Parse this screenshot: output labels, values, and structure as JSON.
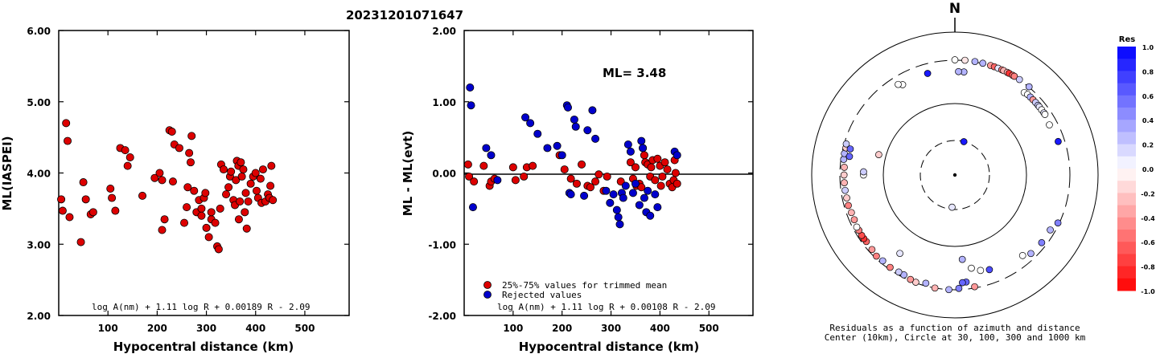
{
  "title": "20231201071647",
  "chart_data": [
    {
      "type": "scatter",
      "ylabel": "ML(IASPEI)",
      "xlabel": "Hypocentral distance (km)",
      "xlim": [
        0,
        590
      ],
      "ylim": [
        2.0,
        6.0
      ],
      "x_ticks": [
        "100",
        "200",
        "300",
        "400",
        "500"
      ],
      "y_ticks": [
        "2.00",
        "3.00",
        "4.00",
        "5.00",
        "6.00"
      ],
      "formula": "log A(nm) + 1.11 log R + 0.00189 R - 2.09",
      "series": [
        {
          "color": "#dd0000",
          "x": [
            5,
            8,
            15,
            18,
            22,
            45,
            50,
            55,
            65,
            70,
            105,
            108,
            115,
            125,
            135,
            145,
            140,
            170,
            195,
            205,
            210,
            215,
            210,
            225,
            230,
            232,
            235,
            245,
            255,
            260,
            262,
            265,
            268,
            270,
            275,
            280,
            285,
            290,
            290,
            295,
            298,
            300,
            305,
            310,
            310,
            318,
            322,
            325,
            328,
            330,
            335,
            340,
            345,
            348,
            350,
            355,
            358,
            360,
            362,
            365,
            366,
            368,
            370,
            372,
            375,
            378,
            380,
            382,
            385,
            390,
            395,
            400,
            402,
            405,
            410,
            412,
            415,
            420,
            425,
            428,
            430,
            432,
            435
          ],
          "y": [
            3.63,
            3.47,
            4.7,
            4.45,
            3.38,
            3.03,
            3.87,
            3.63,
            3.42,
            3.45,
            3.78,
            3.65,
            3.47,
            4.35,
            4.32,
            4.22,
            4.1,
            3.68,
            3.93,
            4.0,
            3.9,
            3.35,
            3.2,
            4.6,
            4.58,
            3.88,
            4.4,
            4.35,
            3.3,
            3.52,
            3.8,
            4.28,
            4.15,
            4.52,
            3.75,
            3.45,
            3.62,
            3.5,
            3.4,
            3.65,
            3.72,
            3.23,
            3.1,
            3.35,
            3.45,
            3.3,
            2.97,
            2.93,
            3.5,
            4.12,
            4.05,
            3.7,
            3.8,
            3.95,
            4.02,
            3.62,
            3.55,
            3.9,
            4.17,
            4.1,
            3.35,
            3.6,
            4.15,
            3.95,
            4.05,
            3.45,
            3.72,
            3.22,
            3.6,
            3.85,
            3.95,
            4.0,
            3.75,
            3.65,
            3.92,
            3.58,
            4.05,
            3.6,
            3.7,
            3.65,
            3.82,
            4.1,
            3.62
          ]
        }
      ]
    },
    {
      "type": "scatter",
      "ylabel": "ML - ML(evt)",
      "xlabel": "Hypocentral distance (km)",
      "xlim": [
        0,
        590
      ],
      "ylim": [
        -2.0,
        2.0
      ],
      "x_ticks": [
        "100",
        "200",
        "300",
        "400",
        "500"
      ],
      "y_ticks": [
        "-2.00",
        "-1.00",
        "0.00",
        "1.00",
        "2.00"
      ],
      "annotation": "ML= 3.48",
      "formula": "log A(nm) + 1.11 log R + 0.00108 R - 2.09",
      "series": [
        {
          "name": "25%-75% values for trimmed mean",
          "color": "#dd0000",
          "x": [
            8,
            10,
            20,
            40,
            52,
            55,
            62,
            100,
            105,
            122,
            128,
            140,
            195,
            205,
            218,
            230,
            240,
            252,
            258,
            268,
            275,
            285,
            292,
            320,
            340,
            345,
            350,
            352,
            358,
            362,
            365,
            368,
            370,
            375,
            380,
            382,
            385,
            390,
            395,
            400,
            402,
            405,
            410,
            415,
            420,
            425,
            428,
            430,
            432,
            435
          ],
          "y": [
            0.12,
            -0.05,
            -0.12,
            0.1,
            -0.18,
            -0.12,
            -0.08,
            0.08,
            -0.1,
            -0.05,
            0.08,
            0.1,
            0.25,
            0.05,
            -0.08,
            -0.15,
            0.12,
            -0.18,
            -0.2,
            -0.12,
            -0.02,
            -0.25,
            -0.05,
            -0.12,
            0.15,
            -0.08,
            0.08,
            -0.18,
            -0.15,
            -0.2,
            0.35,
            0.25,
            0.15,
            0.12,
            -0.05,
            0.08,
            0.18,
            -0.1,
            0.2,
            0.1,
            -0.18,
            -0.05,
            0.15,
            0.05,
            -0.15,
            -0.2,
            -0.1,
            0.18,
            0.0,
            -0.15
          ]
        },
        {
          "name": "Rejected values",
          "color": "#0000cc",
          "x": [
            12,
            14,
            18,
            45,
            55,
            68,
            125,
            135,
            150,
            170,
            190,
            200,
            210,
            212,
            215,
            218,
            225,
            228,
            245,
            252,
            262,
            268,
            290,
            298,
            305,
            312,
            315,
            318,
            322,
            325,
            330,
            335,
            340,
            345,
            350,
            358,
            362,
            365,
            368,
            372,
            375,
            380,
            390,
            395,
            430,
            435
          ],
          "y": [
            1.2,
            0.95,
            -0.48,
            0.35,
            0.25,
            -0.1,
            0.78,
            0.7,
            0.55,
            0.35,
            0.38,
            0.25,
            0.95,
            0.92,
            -0.28,
            -0.3,
            0.75,
            0.65,
            -0.32,
            0.6,
            0.88,
            0.48,
            -0.25,
            -0.42,
            -0.3,
            -0.52,
            -0.62,
            -0.72,
            -0.28,
            -0.35,
            -0.18,
            0.4,
            0.3,
            -0.28,
            -0.15,
            -0.45,
            0.45,
            0.35,
            -0.35,
            -0.55,
            -0.25,
            -0.6,
            -0.3,
            -0.48,
            0.3,
            0.25
          ]
        }
      ]
    },
    {
      "type": "polar-scatter",
      "north_label": "N",
      "caption_line1": "Residuals as a function of azimuth and distance",
      "caption_line2": "Center (10km), Circle at 30, 100, 300 and 1000 km",
      "colorbar_title": "Res",
      "colorbar_ticks": [
        "1.0",
        "0.8",
        "0.6",
        "0.4",
        "0.2",
        "0.0",
        "-0.2",
        "-0.4",
        "-0.6",
        "-0.8",
        "-1.0"
      ],
      "rings_km": [
        30,
        100,
        300,
        1000
      ],
      "colors": {
        "positive": "#0000ff",
        "negative": "#ff0000",
        "zero": "#ffffff"
      },
      "points": [
        {
          "az": 185,
          "dist": 28,
          "res": 0.1
        },
        {
          "az": 15,
          "dist": 30,
          "res": 0.9
        },
        {
          "az": 345,
          "dist": 235,
          "res": 0.9
        },
        {
          "az": 0,
          "dist": 305,
          "res": 0.0
        },
        {
          "az": 5,
          "dist": 305,
          "res": -0.1
        },
        {
          "az": 10,
          "dist": 305,
          "res": 0.3
        },
        {
          "az": 14,
          "dist": 305,
          "res": 0.3
        },
        {
          "az": 18,
          "dist": 305,
          "res": -0.4
        },
        {
          "az": 20,
          "dist": 305,
          "res": -0.6
        },
        {
          "az": 22,
          "dist": 305,
          "res": 0.1
        },
        {
          "az": 24,
          "dist": 305,
          "res": -0.5
        },
        {
          "az": 25,
          "dist": 305,
          "res": -0.3
        },
        {
          "az": 27,
          "dist": 305,
          "res": -0.3
        },
        {
          "az": 28,
          "dist": 305,
          "res": -0.8
        },
        {
          "az": 30,
          "dist": 305,
          "res": -0.6
        },
        {
          "az": 31,
          "dist": 305,
          "res": -0.5
        },
        {
          "az": 34,
          "dist": 305,
          "res": 0.2
        },
        {
          "az": 40,
          "dist": 305,
          "res": 0.3
        },
        {
          "az": 40,
          "dist": 250,
          "res": 0.0
        },
        {
          "az": 42,
          "dist": 255,
          "res": 0.0
        },
        {
          "az": 44,
          "dist": 255,
          "res": 0.3
        },
        {
          "az": 46,
          "dist": 255,
          "res": -0.4
        },
        {
          "az": 48,
          "dist": 255,
          "res": 0.2
        },
        {
          "az": 50,
          "dist": 255,
          "res": 0.2
        },
        {
          "az": 51,
          "dist": 255,
          "res": 0.1
        },
        {
          "az": 53,
          "dist": 255,
          "res": 0.0
        },
        {
          "az": 55,
          "dist": 255,
          "res": 0.1
        },
        {
          "az": 56,
          "dist": 255,
          "res": 0.0
        },
        {
          "az": 62,
          "dist": 245,
          "res": 0.0
        },
        {
          "az": 72,
          "dist": 255,
          "res": 0.9
        },
        {
          "az": 5,
          "dist": 225,
          "res": 0.3
        },
        {
          "az": 2,
          "dist": 225,
          "res": 0.3
        },
        {
          "az": 330,
          "dist": 230,
          "res": 0.0
        },
        {
          "az": 328,
          "dist": 245,
          "res": 0.0
        },
        {
          "az": 175,
          "dist": 140,
          "res": 0.3
        },
        {
          "az": 170,
          "dist": 180,
          "res": 0.0
        },
        {
          "az": 165,
          "dist": 200,
          "res": 0.0
        },
        {
          "az": 160,
          "dist": 210,
          "res": 0.7
        },
        {
          "az": 140,
          "dist": 235,
          "res": 0.0
        },
        {
          "az": 136,
          "dist": 260,
          "res": 0.3
        },
        {
          "az": 128,
          "dist": 265,
          "res": 0.5
        },
        {
          "az": 120,
          "dist": 265,
          "res": 0.3
        },
        {
          "az": 115,
          "dist": 290,
          "res": 0.5
        },
        {
          "az": 170,
          "dist": 290,
          "res": -0.4
        },
        {
          "az": 174,
          "dist": 250,
          "res": 0.6
        },
        {
          "az": 176,
          "dist": 252,
          "res": 0.6
        },
        {
          "az": 178,
          "dist": 290,
          "res": 0.5
        },
        {
          "az": 183,
          "dist": 300,
          "res": 0.3
        },
        {
          "az": 190,
          "dist": 300,
          "res": -0.3
        },
        {
          "az": 195,
          "dist": 280,
          "res": 0.3
        },
        {
          "az": 200,
          "dist": 295,
          "res": -0.2
        },
        {
          "az": 203,
          "dist": 290,
          "res": -0.4
        },
        {
          "az": 207,
          "dist": 280,
          "res": 0.3
        },
        {
          "az": 210,
          "dist": 280,
          "res": 0.2
        },
        {
          "az": 215,
          "dist": 285,
          "res": -0.5
        },
        {
          "az": 220,
          "dist": 280,
          "res": 0.3
        },
        {
          "az": 224,
          "dist": 285,
          "res": -0.5
        },
        {
          "az": 228,
          "dist": 275,
          "res": -0.4
        },
        {
          "az": 233,
          "dist": 270,
          "res": -0.6
        },
        {
          "az": 235,
          "dist": 272,
          "res": -0.8
        },
        {
          "az": 237,
          "dist": 272,
          "res": -0.7
        },
        {
          "az": 240,
          "dist": 270,
          "res": -0.5
        },
        {
          "az": 242,
          "dist": 272,
          "res": 0.0
        },
        {
          "az": 246,
          "dist": 265,
          "res": -0.4
        },
        {
          "az": 250,
          "dist": 265,
          "res": -0.3
        },
        {
          "az": 254,
          "dist": 270,
          "res": -0.5
        },
        {
          "az": 258,
          "dist": 268,
          "res": -0.2
        },
        {
          "az": 262,
          "dist": 270,
          "res": 0.2
        },
        {
          "az": 266,
          "dist": 270,
          "res": -0.3
        },
        {
          "az": 270,
          "dist": 270,
          "res": -0.2
        },
        {
          "az": 274,
          "dist": 270,
          "res": -0.3
        },
        {
          "az": 278,
          "dist": 280,
          "res": 0.3
        },
        {
          "az": 281,
          "dist": 282,
          "res": 0.3
        },
        {
          "az": 284,
          "dist": 280,
          "res": -0.2
        },
        {
          "az": 286,
          "dist": 285,
          "res": 0.2
        },
        {
          "az": 284,
          "dist": 250,
          "res": 0.6
        },
        {
          "az": 280,
          "dist": 245,
          "res": 0.6
        },
        {
          "az": 270,
          "dist": 165,
          "res": 0.0
        },
        {
          "az": 272,
          "dist": 165,
          "res": 0.2
        },
        {
          "az": 285,
          "dist": 120,
          "res": -0.2
        },
        {
          "az": 215,
          "dist": 185,
          "res": 0.1
        }
      ]
    }
  ]
}
